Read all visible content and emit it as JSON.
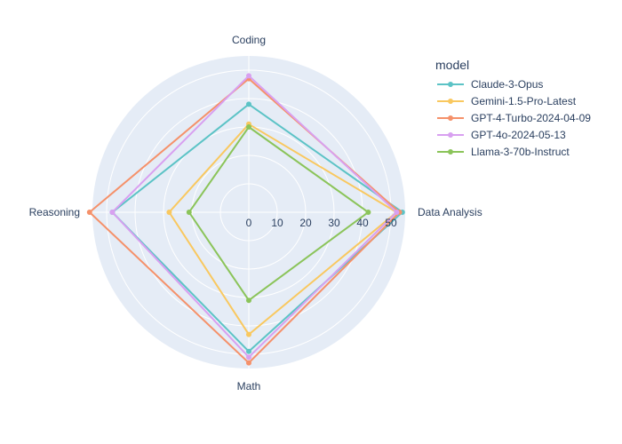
{
  "chart_data": {
    "type": "radar",
    "axes": [
      "Coding",
      "Data Analysis",
      "Math",
      "Reasoning"
    ],
    "radial_range": [
      0,
      55
    ],
    "radial_ticks": [
      0,
      10,
      20,
      30,
      40,
      50
    ],
    "legend_title": "model",
    "legend_placement": "top-right",
    "grid": true,
    "series": [
      {
        "name": "Claude-3-Opus",
        "values": [
          38,
          54,
          49,
          48
        ],
        "color": "#5cc3c6"
      },
      {
        "name": "Gemini-1.5-Pro-Latest",
        "values": [
          31,
          52,
          43,
          28
        ],
        "color": "#f9c85f"
      },
      {
        "name": "GPT-4-Turbo-2024-04-09",
        "values": [
          47,
          53,
          53,
          56
        ],
        "color": "#f5916a"
      },
      {
        "name": "GPT-4o-2024-05-13",
        "values": [
          48,
          52,
          51,
          48
        ],
        "color": "#d8a0f0"
      },
      {
        "name": "Llama-3-70b-Instruct",
        "values": [
          30,
          42,
          31,
          21
        ],
        "color": "#8bc45a"
      }
    ]
  }
}
